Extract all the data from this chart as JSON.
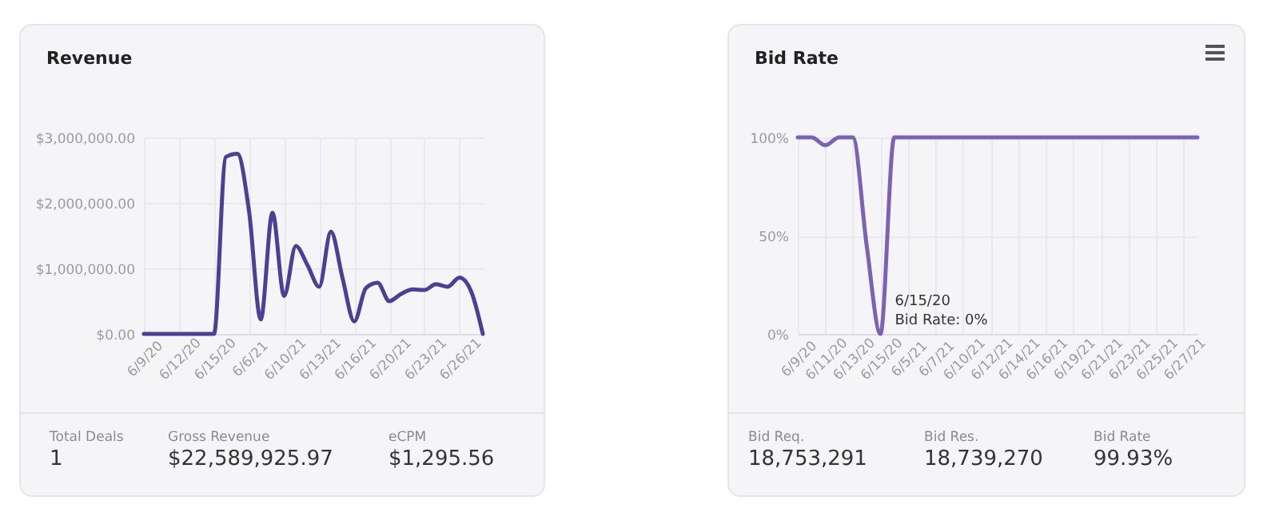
{
  "chart_data": [
    {
      "type": "line",
      "title": "Revenue",
      "categories": [
        "6/9/20",
        null,
        null,
        "6/12/20",
        null,
        null,
        "6/15/20",
        null,
        null,
        "6/6/21",
        null,
        null,
        "6/10/21",
        null,
        null,
        "6/13/21",
        null,
        null,
        "6/16/21",
        null,
        null,
        "6/20/21",
        null,
        null,
        "6/23/21",
        null,
        null,
        "6/26/21",
        null,
        null
      ],
      "series": [
        {
          "color": "#4b3f9a",
          "values": [
            0,
            0,
            0,
            0,
            0,
            0,
            0,
            2700000,
            2750000,
            1870000,
            220000,
            1850000,
            580000,
            1340000,
            1050000,
            720000,
            1560000,
            850000,
            190000,
            700000,
            780000,
            500000,
            610000,
            680000,
            670000,
            760000,
            720000,
            860000,
            650000,
            0
          ]
        }
      ],
      "ylim": [
        0,
        3000000
      ],
      "yticks": [
        {
          "value": 0,
          "label": "$0.00"
        },
        {
          "value": 1000000,
          "label": "$1,000,000.00"
        },
        {
          "value": 2000000,
          "label": "$2,000,000.00"
        },
        {
          "value": 3000000,
          "label": "$3,000,000.00"
        }
      ],
      "grid": true,
      "marker": "none",
      "line_style": "solid",
      "annotations": [
        "Total Deals",
        "1",
        "Gross Revenue",
        "$22,589,925.97",
        "eCPM",
        "$1,295.56"
      ]
    },
    {
      "type": "line",
      "title": "Bid Rate",
      "categories": [
        "6/9/20",
        null,
        "6/11/20",
        null,
        "6/13/20",
        null,
        "6/15/20",
        null,
        "6/5/21",
        null,
        "6/7/21",
        null,
        "6/10/21",
        null,
        "6/12/21",
        null,
        "6/14/21",
        null,
        "6/16/21",
        null,
        "6/19/21",
        null,
        "6/21/21",
        null,
        "6/23/21",
        null,
        "6/25/21",
        null,
        "6/27/21",
        null
      ],
      "series": [
        {
          "color": "#7a62b8",
          "values": [
            100,
            100,
            96,
            100,
            100,
            45,
            0,
            100,
            100,
            100,
            100,
            100,
            100,
            100,
            100,
            100,
            100,
            100,
            100,
            100,
            100,
            100,
            100,
            100,
            100,
            100,
            100,
            100,
            100,
            100
          ]
        }
      ],
      "ylim": [
        0,
        100
      ],
      "yticks": [
        {
          "value": 0,
          "label": "0%"
        },
        {
          "value": 50,
          "label": "50%"
        },
        {
          "value": 100,
          "label": "100%"
        }
      ],
      "grid": true,
      "marker": "none",
      "line_style": "solid",
      "annotations": [
        {
          "text": "6/15/20",
          "x": "6/15/20",
          "y": 0
        },
        {
          "text": "Bid Rate: 0%",
          "x": "6/15/20",
          "y": 0
        },
        "Bid Req.",
        "18,753,291",
        "Bid Res.",
        "18,739,270",
        "Bid Rate",
        "99.93%"
      ]
    }
  ]
}
